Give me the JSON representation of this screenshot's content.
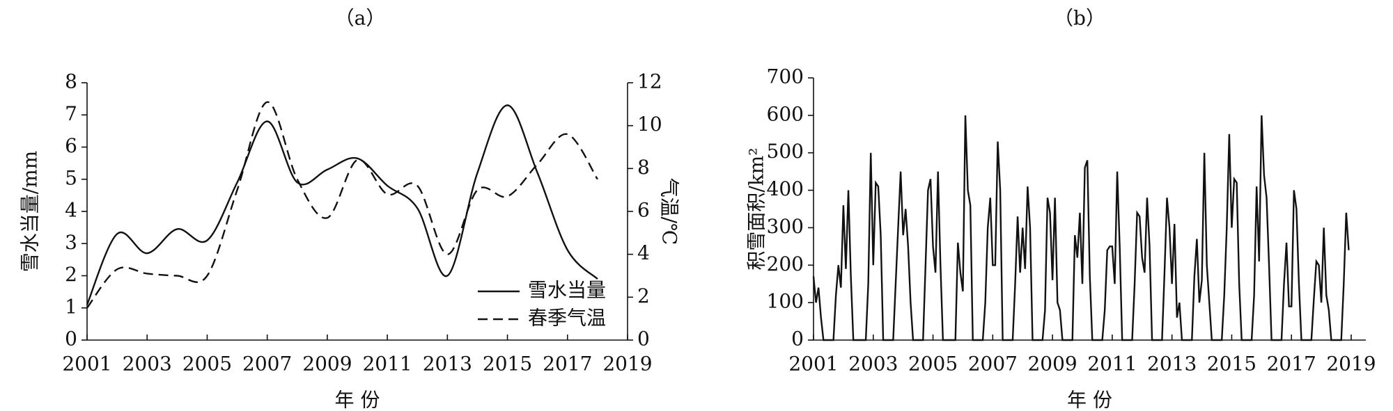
{
  "chart_data": [
    {
      "type": "line",
      "title": "（a）",
      "xlabel": "年 份",
      "ylabel": "雪水当量/mm",
      "y2label": "气温/℃",
      "x": [
        2001,
        2002,
        2003,
        2004,
        2005,
        2006,
        2007,
        2008,
        2009,
        2010,
        2011,
        2012,
        2013,
        2014,
        2015,
        2016,
        2017,
        2018
      ],
      "xlim": [
        2001,
        2019
      ],
      "xticks": [
        2001,
        2003,
        2005,
        2007,
        2009,
        2011,
        2013,
        2015,
        2017,
        2019
      ],
      "ylim": [
        0,
        8
      ],
      "yticks": [
        0,
        1,
        2,
        3,
        4,
        5,
        6,
        7,
        8
      ],
      "y2lim": [
        0,
        12
      ],
      "y2ticks": [
        0,
        2,
        4,
        6,
        8,
        10,
        12
      ],
      "smooth": true,
      "legend": "lower right",
      "series": [
        {
          "name": "雪水当量",
          "color": "#111111",
          "style": "solid",
          "values": [
            1.1,
            3.3,
            2.7,
            3.45,
            3.1,
            4.9,
            6.8,
            4.9,
            5.3,
            5.65,
            4.8,
            4.1,
            2.0,
            5.2,
            7.3,
            5.2,
            2.8,
            1.9
          ]
        },
        {
          "name": "春季气温",
          "color": "#111111",
          "style": "dashed",
          "axis": "y2",
          "values": [
            1.5,
            3.3,
            3.1,
            3.0,
            3.0,
            7.0,
            11.1,
            7.5,
            5.7,
            8.4,
            6.8,
            7.2,
            4.0,
            7.0,
            6.7,
            8.2,
            9.6,
            7.5
          ]
        }
      ]
    },
    {
      "type": "line",
      "title": "（b）",
      "xlabel": "年 份",
      "ylabel": "积雪面积/km²",
      "xlim": [
        2001,
        2019
      ],
      "xticks": [
        2001,
        2003,
        2005,
        2007,
        2009,
        2011,
        2013,
        2015,
        2017,
        2019
      ],
      "ylim": [
        0,
        700
      ],
      "yticks": [
        0,
        100,
        200,
        300,
        400,
        500,
        600,
        700
      ],
      "smooth": false,
      "x": [
        2001,
        2001.083,
        2001.167,
        2001.25,
        2001.333,
        2001.417,
        2001.5,
        2001.583,
        2001.667,
        2001.75,
        2001.833,
        2001.917,
        2002,
        2002.083,
        2002.167,
        2002.25,
        2002.333,
        2002.417,
        2002.5,
        2002.583,
        2002.667,
        2002.75,
        2002.833,
        2002.917,
        2003,
        2003.083,
        2003.167,
        2003.25,
        2003.333,
        2003.417,
        2003.5,
        2003.583,
        2003.667,
        2003.75,
        2003.833,
        2003.917,
        2004,
        2004.083,
        2004.167,
        2004.25,
        2004.333,
        2004.417,
        2004.5,
        2004.583,
        2004.667,
        2004.75,
        2004.833,
        2004.917,
        2005,
        2005.083,
        2005.167,
        2005.25,
        2005.333,
        2005.417,
        2005.5,
        2005.583,
        2005.667,
        2005.75,
        2005.833,
        2005.917,
        2006,
        2006.083,
        2006.167,
        2006.25,
        2006.333,
        2006.417,
        2006.5,
        2006.583,
        2006.667,
        2006.75,
        2006.833,
        2006.917,
        2007,
        2007.083,
        2007.167,
        2007.25,
        2007.333,
        2007.417,
        2007.5,
        2007.583,
        2007.667,
        2007.75,
        2007.833,
        2007.917,
        2008,
        2008.083,
        2008.167,
        2008.25,
        2008.333,
        2008.417,
        2008.5,
        2008.583,
        2008.667,
        2008.75,
        2008.833,
        2008.917,
        2009,
        2009.083,
        2009.167,
        2009.25,
        2009.333,
        2009.417,
        2009.5,
        2009.583,
        2009.667,
        2009.75,
        2009.833,
        2009.917,
        2010,
        2010.083,
        2010.167,
        2010.25,
        2010.333,
        2010.417,
        2010.5,
        2010.583,
        2010.667,
        2010.75,
        2010.833,
        2010.917,
        2011,
        2011.083,
        2011.167,
        2011.25,
        2011.333,
        2011.417,
        2011.5,
        2011.583,
        2011.667,
        2011.75,
        2011.833,
        2011.917,
        2012,
        2012.083,
        2012.167,
        2012.25,
        2012.333,
        2012.417,
        2012.5,
        2012.583,
        2012.667,
        2012.75,
        2012.833,
        2012.917,
        2013,
        2013.083,
        2013.167,
        2013.25,
        2013.333,
        2013.417,
        2013.5,
        2013.583,
        2013.667,
        2013.75,
        2013.833,
        2013.917,
        2014,
        2014.083,
        2014.167,
        2014.25,
        2014.333,
        2014.417,
        2014.5,
        2014.583,
        2014.667,
        2014.75,
        2014.833,
        2014.917,
        2015,
        2015.083,
        2015.167,
        2015.25,
        2015.333,
        2015.417,
        2015.5,
        2015.583,
        2015.667,
        2015.75,
        2015.833,
        2015.917,
        2016,
        2016.083,
        2016.167,
        2016.25,
        2016.333,
        2016.417,
        2016.5,
        2016.583,
        2016.667,
        2016.75,
        2016.833,
        2016.917,
        2017,
        2017.083,
        2017.167,
        2017.25,
        2017.333,
        2017.417,
        2017.5,
        2017.583,
        2017.667,
        2017.75,
        2017.833,
        2017.917,
        2018,
        2018.083,
        2018.167,
        2018.25,
        2018.333,
        2018.417,
        2018.5,
        2018.583,
        2018.667,
        2018.75,
        2018.833,
        2018.917
      ],
      "series": [
        {
          "color": "#111111",
          "style": "solid",
          "values": [
            170,
            100,
            140,
            60,
            0,
            0,
            0,
            0,
            0,
            120,
            200,
            140,
            360,
            190,
            400,
            170,
            0,
            0,
            0,
            0,
            0,
            0,
            150,
            500,
            200,
            420,
            410,
            280,
            0,
            0,
            0,
            0,
            0,
            150,
            300,
            450,
            280,
            350,
            250,
            100,
            0,
            0,
            0,
            0,
            0,
            200,
            400,
            430,
            250,
            180,
            450,
            200,
            0,
            0,
            0,
            0,
            0,
            0,
            260,
            180,
            130,
            600,
            400,
            360,
            0,
            0,
            0,
            0,
            0,
            100,
            300,
            380,
            200,
            200,
            530,
            400,
            0,
            0,
            0,
            0,
            0,
            150,
            330,
            180,
            300,
            190,
            410,
            300,
            0,
            0,
            0,
            0,
            0,
            80,
            380,
            340,
            160,
            380,
            100,
            80,
            0,
            0,
            0,
            0,
            0,
            280,
            220,
            340,
            150,
            460,
            480,
            170,
            0,
            0,
            0,
            0,
            0,
            80,
            240,
            250,
            250,
            150,
            450,
            250,
            0,
            0,
            0,
            0,
            0,
            150,
            340,
            330,
            220,
            180,
            380,
            250,
            0,
            0,
            0,
            0,
            0,
            180,
            380,
            300,
            150,
            310,
            60,
            100,
            0,
            0,
            0,
            0,
            0,
            170,
            270,
            100,
            160,
            500,
            200,
            100,
            0,
            0,
            0,
            0,
            0,
            120,
            300,
            550,
            300,
            430,
            420,
            150,
            0,
            0,
            0,
            0,
            0,
            120,
            410,
            210,
            600,
            440,
            380,
            200,
            0,
            0,
            0,
            0,
            0,
            150,
            260,
            90,
            90,
            400,
            350,
            150,
            0,
            0,
            0,
            0,
            0,
            110,
            210,
            200,
            100,
            300,
            120,
            80,
            0,
            0,
            0,
            0,
            0,
            150,
            340,
            240
          ]
        }
      ]
    }
  ]
}
